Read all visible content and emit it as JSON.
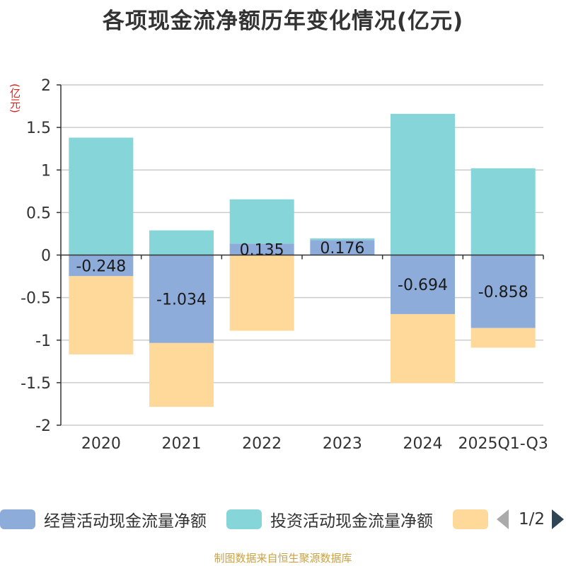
{
  "title": "各项现金流净额历年变化情况(亿元)",
  "unit_label": "(亿元)",
  "source": "制图数据来自恒生聚源数据库",
  "colors": {
    "operating": "#8eacda",
    "investing": "#86d5d8",
    "financing": "#ffd99a",
    "grid": "#cccccc",
    "axis": "#333333",
    "unit": "#d9221c",
    "source": "#c8a246"
  },
  "legend": {
    "items": [
      {
        "label": "经营活动现金流量净额",
        "color": "#8eacda"
      },
      {
        "label": "投资活动现金流量净额",
        "color": "#86d5d8"
      },
      {
        "label": "",
        "color": "#ffd99a"
      }
    ],
    "pager_text": "1/2"
  },
  "chart_data": {
    "type": "bar",
    "stacked": true,
    "title": "各项现金流净额历年变化情况(亿元)",
    "ylabel": "(亿元)",
    "xlabel": "",
    "ylim": [
      -2,
      2
    ],
    "yticks": [
      2,
      1.5,
      1,
      0.5,
      0,
      -0.5,
      -1,
      -1.5,
      -2
    ],
    "ytick_labels": [
      "2",
      "1.5",
      "1",
      "0.5",
      "0",
      "-0.5",
      "-1",
      "-1.5",
      "-2"
    ],
    "categories": [
      "2020",
      "2021",
      "2022",
      "2023",
      "2024",
      "2025Q1-Q3"
    ],
    "series": [
      {
        "name": "经营活动现金流量净额",
        "key": "operating",
        "values": [
          -0.248,
          -1.034,
          0.135,
          0.176,
          -0.694,
          -0.858
        ]
      },
      {
        "name": "投资活动现金流量净额",
        "key": "investing",
        "values": [
          1.38,
          0.29,
          0.52,
          0.02,
          1.66,
          1.02
        ]
      },
      {
        "name": "",
        "key": "financing",
        "values": [
          -0.92,
          -0.75,
          -0.89,
          0.0,
          -0.81,
          -0.23
        ]
      }
    ],
    "data_labels": {
      "operating": [
        "-0.248",
        "-1.034",
        "0.135",
        "0.176",
        "-0.694",
        "-0.858"
      ]
    },
    "grid": true
  }
}
